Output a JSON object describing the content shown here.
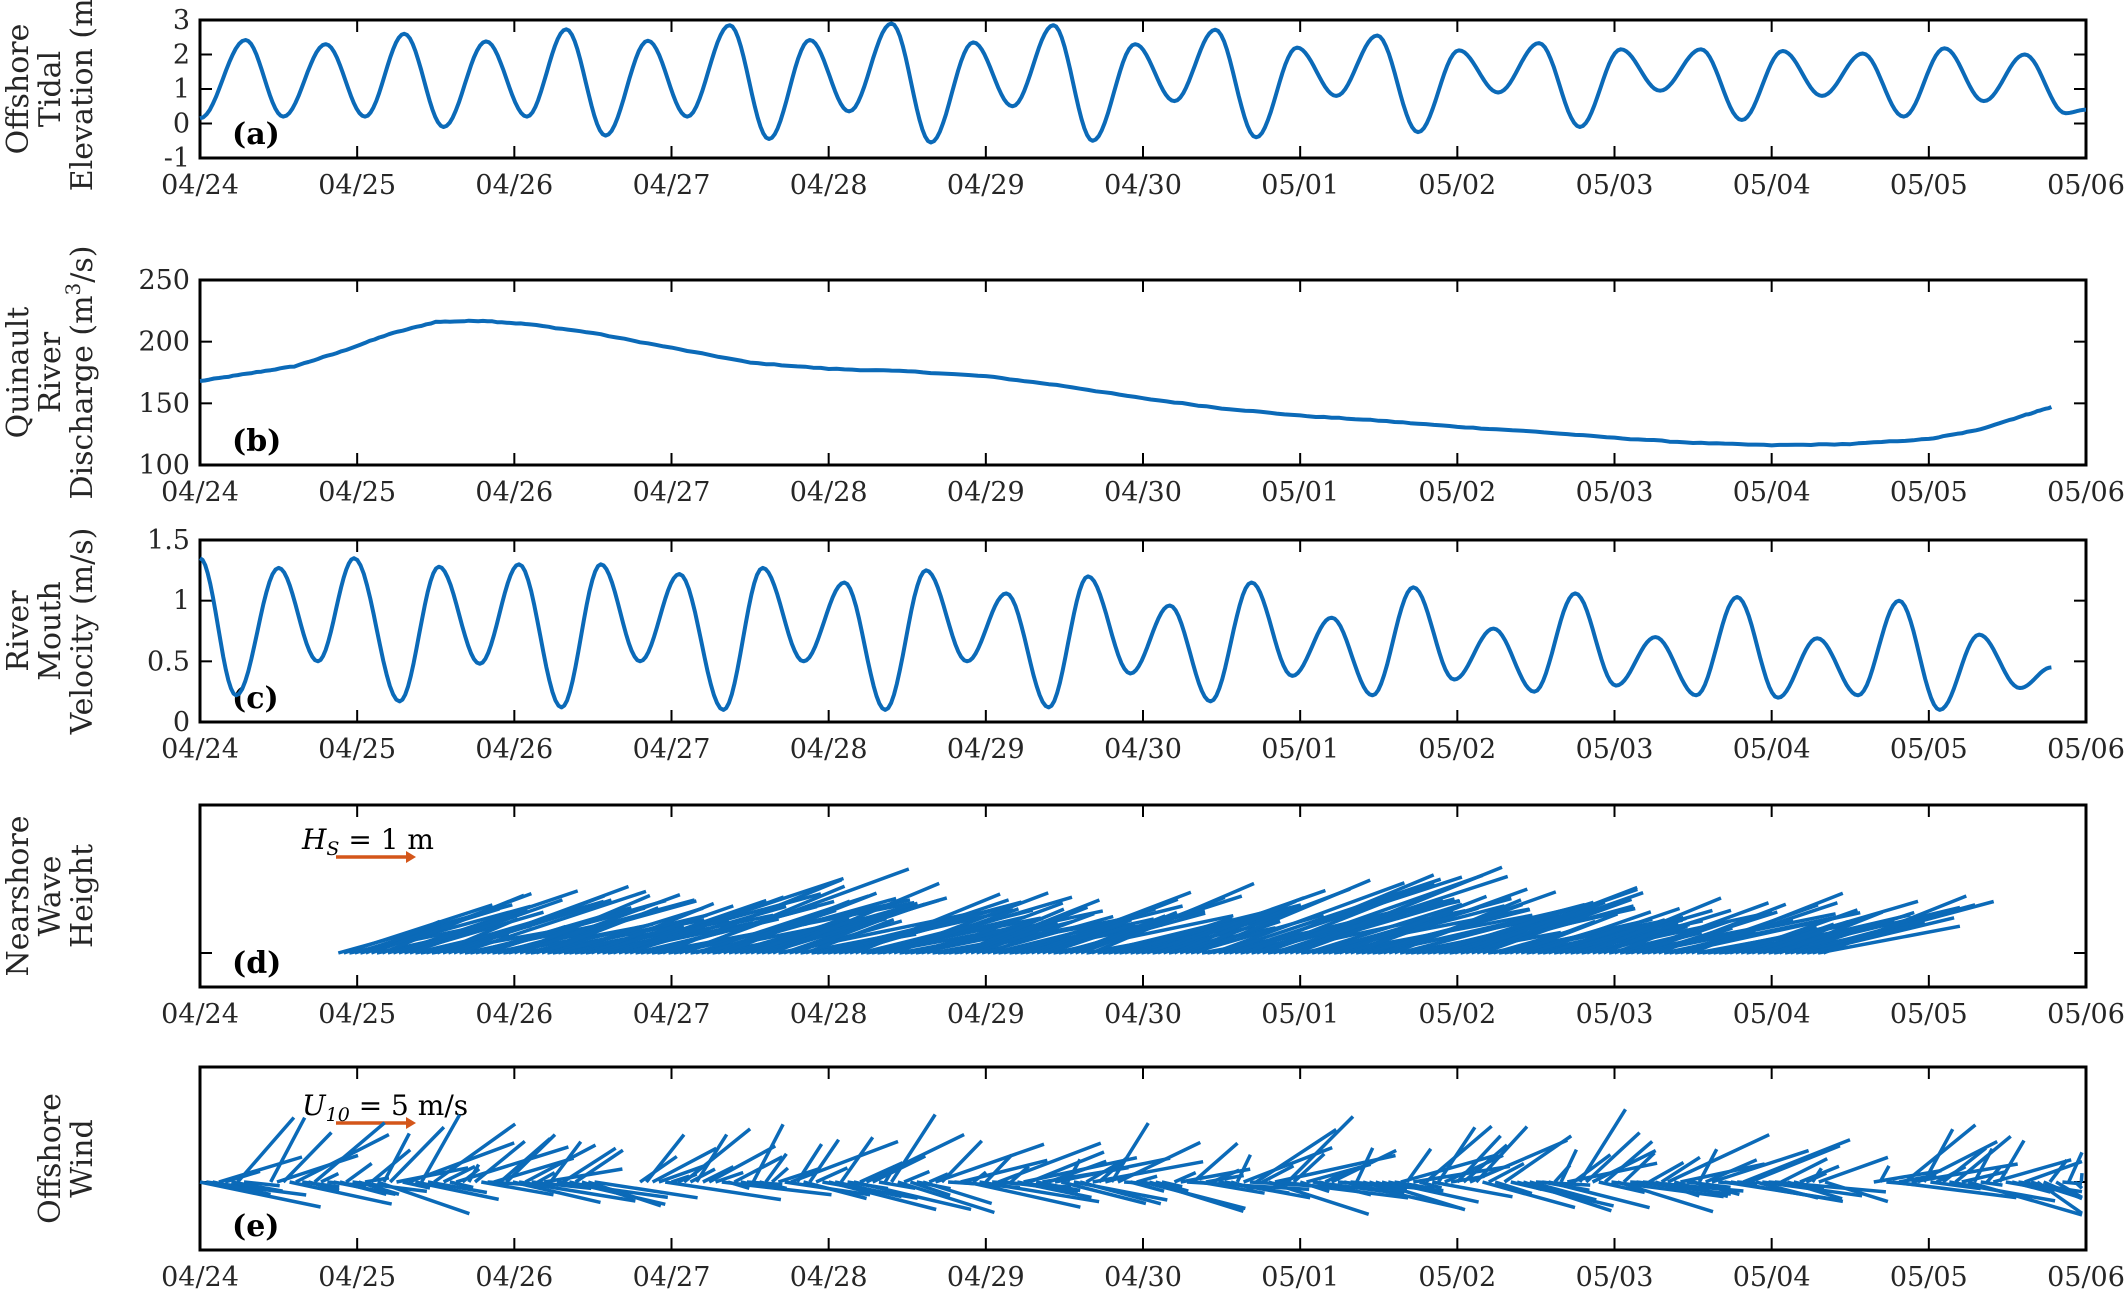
{
  "chart_data": [
    {
      "type": "line",
      "panel": "(a)",
      "ylabel_lines": [
        "Offshore",
        "Tidal",
        "Elevation (m)"
      ],
      "ylim": [
        -1,
        3
      ],
      "yticks": [
        "-1",
        "0",
        "1",
        "2",
        "3"
      ],
      "xticks": [
        "04/24",
        "04/25",
        "04/26",
        "04/27",
        "04/28",
        "04/29",
        "04/30",
        "05/01",
        "05/02",
        "05/03",
        "05/04",
        "05/05",
        "05/06"
      ],
      "xlim_days": [
        0,
        12
      ],
      "series": [
        {
          "name": "Offshore Tidal Elevation",
          "extrema": [
            [
              0,
              0.15
            ],
            [
              0.29,
              2.42
            ],
            [
              0.53,
              0.2
            ],
            [
              0.8,
              2.3
            ],
            [
              1.05,
              0.2
            ],
            [
              1.3,
              2.6
            ],
            [
              1.55,
              -0.1
            ],
            [
              1.82,
              2.38
            ],
            [
              2.08,
              0.2
            ],
            [
              2.33,
              2.73
            ],
            [
              2.58,
              -0.35
            ],
            [
              2.85,
              2.4
            ],
            [
              3.1,
              0.2
            ],
            [
              3.37,
              2.85
            ],
            [
              3.62,
              -0.45
            ],
            [
              3.88,
              2.42
            ],
            [
              4.13,
              0.35
            ],
            [
              4.4,
              2.9
            ],
            [
              4.65,
              -0.55
            ],
            [
              4.92,
              2.35
            ],
            [
              5.17,
              0.5
            ],
            [
              5.43,
              2.85
            ],
            [
              5.68,
              -0.5
            ],
            [
              5.95,
              2.3
            ],
            [
              6.2,
              0.65
            ],
            [
              6.46,
              2.72
            ],
            [
              6.72,
              -0.4
            ],
            [
              6.98,
              2.2
            ],
            [
              7.23,
              0.8
            ],
            [
              7.49,
              2.55
            ],
            [
              7.75,
              -0.25
            ],
            [
              8.01,
              2.12
            ],
            [
              8.26,
              0.9
            ],
            [
              8.52,
              2.33
            ],
            [
              8.78,
              -0.1
            ],
            [
              9.04,
              2.15
            ],
            [
              9.29,
              0.95
            ],
            [
              9.55,
              2.15
            ],
            [
              9.81,
              0.1
            ],
            [
              10.07,
              2.1
            ],
            [
              10.32,
              0.8
            ],
            [
              10.58,
              2.03
            ],
            [
              10.84,
              0.2
            ],
            [
              11.1,
              2.18
            ],
            [
              11.35,
              0.65
            ],
            [
              11.61,
              2.0
            ],
            [
              11.87,
              0.3
            ],
            [
              12,
              0.4
            ]
          ]
        }
      ]
    },
    {
      "type": "line",
      "panel": "(b)",
      "ylabel_lines": [
        "Quinault",
        "River",
        "Discharge (m³/s)"
      ],
      "ylabel_base": "Discharge (m",
      "ylabel_sup": "3",
      "ylabel_tail": "/s)",
      "ylim": [
        100,
        250
      ],
      "yticks": [
        "100",
        "150",
        "200",
        "250"
      ],
      "xticks": [
        "04/24",
        "04/25",
        "04/26",
        "04/27",
        "04/28",
        "04/29",
        "04/30",
        "05/01",
        "05/02",
        "05/03",
        "05/04",
        "05/05",
        "05/06"
      ],
      "xlim_days": [
        0,
        12
      ],
      "series": [
        {
          "name": "Quinault River Discharge",
          "points": [
            [
              0,
              168
            ],
            [
              0.3,
              174
            ],
            [
              0.6,
              180
            ],
            [
              0.9,
              192
            ],
            [
              1.2,
              206
            ],
            [
              1.5,
              216
            ],
            [
              1.8,
              217
            ],
            [
              2.1,
              214
            ],
            [
              2.5,
              207
            ],
            [
              3,
              195
            ],
            [
              3.5,
              183
            ],
            [
              4,
              178
            ],
            [
              4.5,
              176
            ],
            [
              5,
              172
            ],
            [
              5.5,
              164
            ],
            [
              6,
              154
            ],
            [
              6.5,
              146
            ],
            [
              7,
              140
            ],
            [
              7.5,
              136
            ],
            [
              8,
              131
            ],
            [
              8.5,
              127
            ],
            [
              9,
              122
            ],
            [
              9.5,
              118
            ],
            [
              10,
              116
            ],
            [
              10.5,
              117
            ],
            [
              11,
              121
            ],
            [
              11.3,
              128
            ],
            [
              11.6,
              140
            ],
            [
              11.78,
              147
            ]
          ]
        }
      ]
    },
    {
      "type": "line",
      "panel": "(c)",
      "ylabel_lines": [
        "River",
        "Mouth",
        "Velocity (m/s)"
      ],
      "ylim": [
        0,
        1.5
      ],
      "yticks": [
        "0",
        "0.5",
        "1",
        "1.5"
      ],
      "xticks": [
        "04/24",
        "04/25",
        "04/26",
        "04/27",
        "04/28",
        "04/29",
        "04/30",
        "05/01",
        "05/02",
        "05/03",
        "05/04",
        "05/05",
        "05/06"
      ],
      "xlim_days": [
        0,
        12
      ],
      "series": [
        {
          "name": "River Mouth Velocity",
          "extrema": [
            [
              0,
              1.35
            ],
            [
              0.23,
              0.22
            ],
            [
              0.5,
              1.27
            ],
            [
              0.75,
              0.5
            ],
            [
              0.98,
              1.35
            ],
            [
              1.27,
              0.17
            ],
            [
              1.52,
              1.28
            ],
            [
              1.78,
              0.48
            ],
            [
              2.03,
              1.3
            ],
            [
              2.3,
              0.12
            ],
            [
              2.55,
              1.3
            ],
            [
              2.8,
              0.5
            ],
            [
              3.05,
              1.22
            ],
            [
              3.33,
              0.1
            ],
            [
              3.58,
              1.27
            ],
            [
              3.84,
              0.5
            ],
            [
              4.1,
              1.15
            ],
            [
              4.36,
              0.1
            ],
            [
              4.62,
              1.25
            ],
            [
              4.88,
              0.5
            ],
            [
              5.13,
              1.06
            ],
            [
              5.4,
              0.12
            ],
            [
              5.65,
              1.2
            ],
            [
              5.92,
              0.4
            ],
            [
              6.17,
              0.96
            ],
            [
              6.43,
              0.17
            ],
            [
              6.69,
              1.15
            ],
            [
              6.95,
              0.38
            ],
            [
              7.2,
              0.86
            ],
            [
              7.46,
              0.22
            ],
            [
              7.72,
              1.11
            ],
            [
              7.98,
              0.35
            ],
            [
              8.23,
              0.77
            ],
            [
              8.49,
              0.25
            ],
            [
              8.75,
              1.06
            ],
            [
              9.01,
              0.3
            ],
            [
              9.26,
              0.7
            ],
            [
              9.52,
              0.22
            ],
            [
              9.78,
              1.03
            ],
            [
              10.04,
              0.2
            ],
            [
              10.29,
              0.69
            ],
            [
              10.55,
              0.22
            ],
            [
              10.81,
              1.0
            ],
            [
              11.07,
              0.1
            ],
            [
              11.32,
              0.72
            ],
            [
              11.58,
              0.28
            ],
            [
              11.78,
              0.45
            ]
          ]
        }
      ]
    },
    {
      "type": "quiver",
      "panel": "(d)",
      "ylabel_lines": [
        "Nearshore",
        "Wave",
        "Height"
      ],
      "reference_label": "H",
      "reference_sub": "S",
      "reference_rest": " = 1 m",
      "xticks": [
        "04/24",
        "04/25",
        "04/26",
        "04/27",
        "04/28",
        "04/29",
        "04/30",
        "05/01",
        "05/02",
        "05/03",
        "05/04",
        "05/05",
        "05/06"
      ],
      "xlim_days": [
        0,
        12
      ],
      "data_range_days": [
        0.88,
        10.35
      ],
      "series": [
        {
          "name": "Significant wave height vectors",
          "typical_hs_m": [
            1.2,
            2.4
          ]
        }
      ]
    },
    {
      "type": "quiver",
      "panel": "(e)",
      "ylabel_lines": [
        "Offshore",
        "Wind"
      ],
      "reference_label": "U",
      "reference_sub": "10",
      "reference_rest": " = 5 m/s",
      "xticks": [
        "04/24",
        "04/25",
        "04/26",
        "04/27",
        "04/28",
        "04/29",
        "04/30",
        "05/01",
        "05/02",
        "05/03",
        "05/04",
        "05/05",
        "05/06"
      ],
      "xlim_days": [
        0,
        12
      ],
      "segments_days": [
        [
          0,
          0.3
        ],
        [
          0.45,
          1.5
        ],
        [
          1.55,
          2.55
        ],
        [
          2.8,
          6.15
        ],
        [
          6.2,
          8.25
        ],
        [
          8.3,
          10.35
        ],
        [
          10.65,
          12
        ]
      ],
      "series": [
        {
          "name": "Offshore wind vectors at 10 m"
        }
      ]
    }
  ],
  "colors": {
    "line": "#0b6ab8",
    "reference_arrow": "#d4561a",
    "axis": "#000000"
  }
}
